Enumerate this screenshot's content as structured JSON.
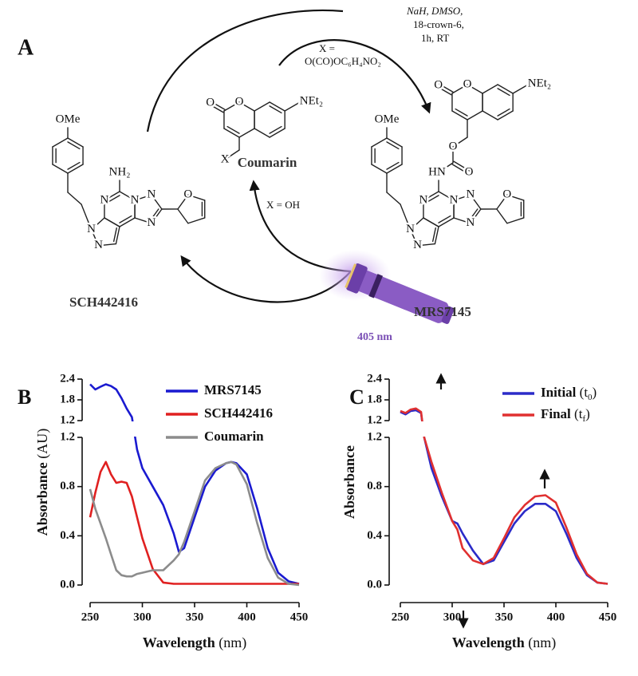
{
  "panel_a": {
    "label": "A",
    "conditions": [
      "NaH, DMSO,",
      "18-crown-6,",
      "1h, RT"
    ],
    "leaving_group": [
      "X =",
      "O(CO)OC₆H₄NO₂"
    ],
    "release": "X = OH",
    "light": "405 nm",
    "coumarin": {
      "name": "Coumarin",
      "atoms": [
        "O",
        "O",
        "NEt₂",
        "X"
      ]
    },
    "sch442416": {
      "name": "SCH442416",
      "atoms": [
        "OMe",
        "NH₂",
        "N",
        "N",
        "N",
        "N",
        "N",
        "N",
        "O"
      ]
    },
    "mrs7145": {
      "name": "MRS7145",
      "atoms": [
        "OMe",
        "HN",
        "N",
        "N",
        "N",
        "N",
        "N",
        "N",
        "O",
        "O",
        "O",
        "O",
        "O",
        "NEt₂"
      ]
    }
  },
  "chart_data": [
    {
      "type": "line",
      "panel": "B",
      "x_label": "Wavelength (nm)",
      "y_label": "Absorbance (AU)",
      "x": [
        250,
        255,
        260,
        265,
        270,
        275,
        280,
        285,
        290,
        295,
        300,
        310,
        320,
        330,
        335,
        340,
        350,
        360,
        370,
        380,
        385,
        390,
        400,
        410,
        420,
        430,
        440,
        450
      ],
      "series": [
        {
          "name": "MRS7145",
          "color": "#1a1ad0",
          "values": [
            2.25,
            2.1,
            2.18,
            2.25,
            2.2,
            2.1,
            1.85,
            1.55,
            1.3,
            1.1,
            0.95,
            0.8,
            0.65,
            0.42,
            0.27,
            0.3,
            0.55,
            0.8,
            0.93,
            0.99,
            1.0,
            0.99,
            0.9,
            0.62,
            0.3,
            0.1,
            0.03,
            0.01
          ]
        },
        {
          "name": "SCH442416",
          "color": "#e02020",
          "values": [
            0.55,
            0.75,
            0.92,
            1.0,
            0.9,
            0.83,
            0.84,
            0.83,
            0.72,
            0.55,
            0.38,
            0.13,
            0.02,
            0.01,
            0.01,
            0.01,
            0.01,
            0.01,
            0.01,
            0.01,
            0.01,
            0.01,
            0.01,
            0.01,
            0.01,
            0.01,
            0.01,
            0.01
          ]
        },
        {
          "name": "Coumarin",
          "color": "#8c8c8c",
          "values": [
            0.78,
            0.62,
            0.5,
            0.38,
            0.25,
            0.12,
            0.08,
            0.07,
            0.07,
            0.09,
            0.1,
            0.12,
            0.12,
            0.2,
            0.25,
            0.35,
            0.6,
            0.85,
            0.95,
            0.99,
            1.0,
            0.98,
            0.82,
            0.5,
            0.22,
            0.06,
            0.01,
            0.0
          ]
        }
      ],
      "xlim": [
        250,
        450
      ],
      "xticks": [
        250,
        300,
        350,
        400,
        450
      ],
      "ylim": [
        0,
        1.2
      ],
      "yticks": [
        {
          "value": 0,
          "label": "0.0"
        },
        0.4,
        0.8,
        1.2
      ],
      "y_break": {
        "ylim": [
          1.2,
          2.4
        ],
        "yticks": [
          1.2,
          1.8,
          2.4
        ]
      }
    },
    {
      "type": "line",
      "panel": "C",
      "x_label": "Wavelength (nm)",
      "y_label": "Absorbance",
      "x": [
        250,
        255,
        260,
        265,
        270,
        273,
        280,
        290,
        300,
        305,
        310,
        320,
        330,
        340,
        350,
        360,
        370,
        380,
        390,
        400,
        410,
        420,
        430,
        440,
        450
      ],
      "series": [
        {
          "name": "Initial (t0)",
          "color": "#2b2bc8",
          "values": [
            1.45,
            1.38,
            1.48,
            1.5,
            1.42,
            1.2,
            0.95,
            0.72,
            0.52,
            0.5,
            0.42,
            0.28,
            0.17,
            0.2,
            0.35,
            0.5,
            0.6,
            0.66,
            0.66,
            0.6,
            0.42,
            0.22,
            0.08,
            0.02,
            0.01
          ]
        },
        {
          "name": "Final (tf)",
          "color": "#e03030",
          "values": [
            1.48,
            1.42,
            1.52,
            1.55,
            1.45,
            1.2,
            1.0,
            0.75,
            0.52,
            0.45,
            0.3,
            0.2,
            0.17,
            0.22,
            0.38,
            0.55,
            0.65,
            0.72,
            0.73,
            0.67,
            0.47,
            0.25,
            0.09,
            0.02,
            0.01
          ]
        }
      ],
      "xlim": [
        250,
        450
      ],
      "xticks": [
        250,
        300,
        350,
        400,
        450
      ],
      "ylim": [
        0,
        1.2
      ],
      "yticks": [
        {
          "value": 0,
          "label": "0.0"
        },
        0.4,
        0.8,
        1.2
      ],
      "y_break": {
        "ylim": [
          1.2,
          2.4
        ],
        "yticks": [
          1.2,
          1.8,
          2.4
        ]
      }
    }
  ]
}
